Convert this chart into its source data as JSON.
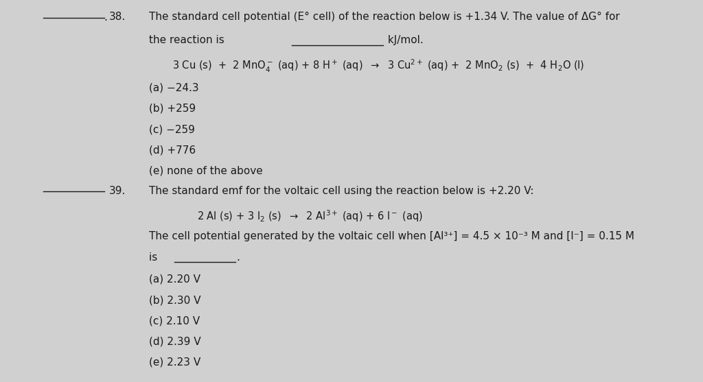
{
  "background_color": "#d0d0d0",
  "paper_color": "#efefef",
  "text_color": "#1a1a1a",
  "fig_width": 10.24,
  "fig_height": 5.57,
  "q38_number": "38.",
  "q38_text1": "The standard cell potential (E° cell) of the reaction below is +1.34 V. The value of ΔG° for",
  "q38_text2": "the reaction is __________ kJ/mol.",
  "q38_a": "(a) −24.3",
  "q38_b": "(b) +259",
  "q38_c": "(c) −259",
  "q38_d": "(d) +776",
  "q38_e": "(e) none of the above",
  "q39_number": "39.",
  "q39_text": "The standard emf for the voltaic cell using the reaction below is +2.20 V:",
  "q39_text2a": "The cell potential generated by the voltaic cell when [Al³⁺] = 4.5 × 10⁻³ M and [I⁻] = 0.15 M",
  "q39_text2b": "is ______.",
  "q39_a": "(a) 2.20 V",
  "q39_b": "(b) 2.30 V",
  "q39_c": "(c) 2.10 V",
  "q39_d": "(d) 2.39 V",
  "q39_e": "(e) 2.23 V"
}
